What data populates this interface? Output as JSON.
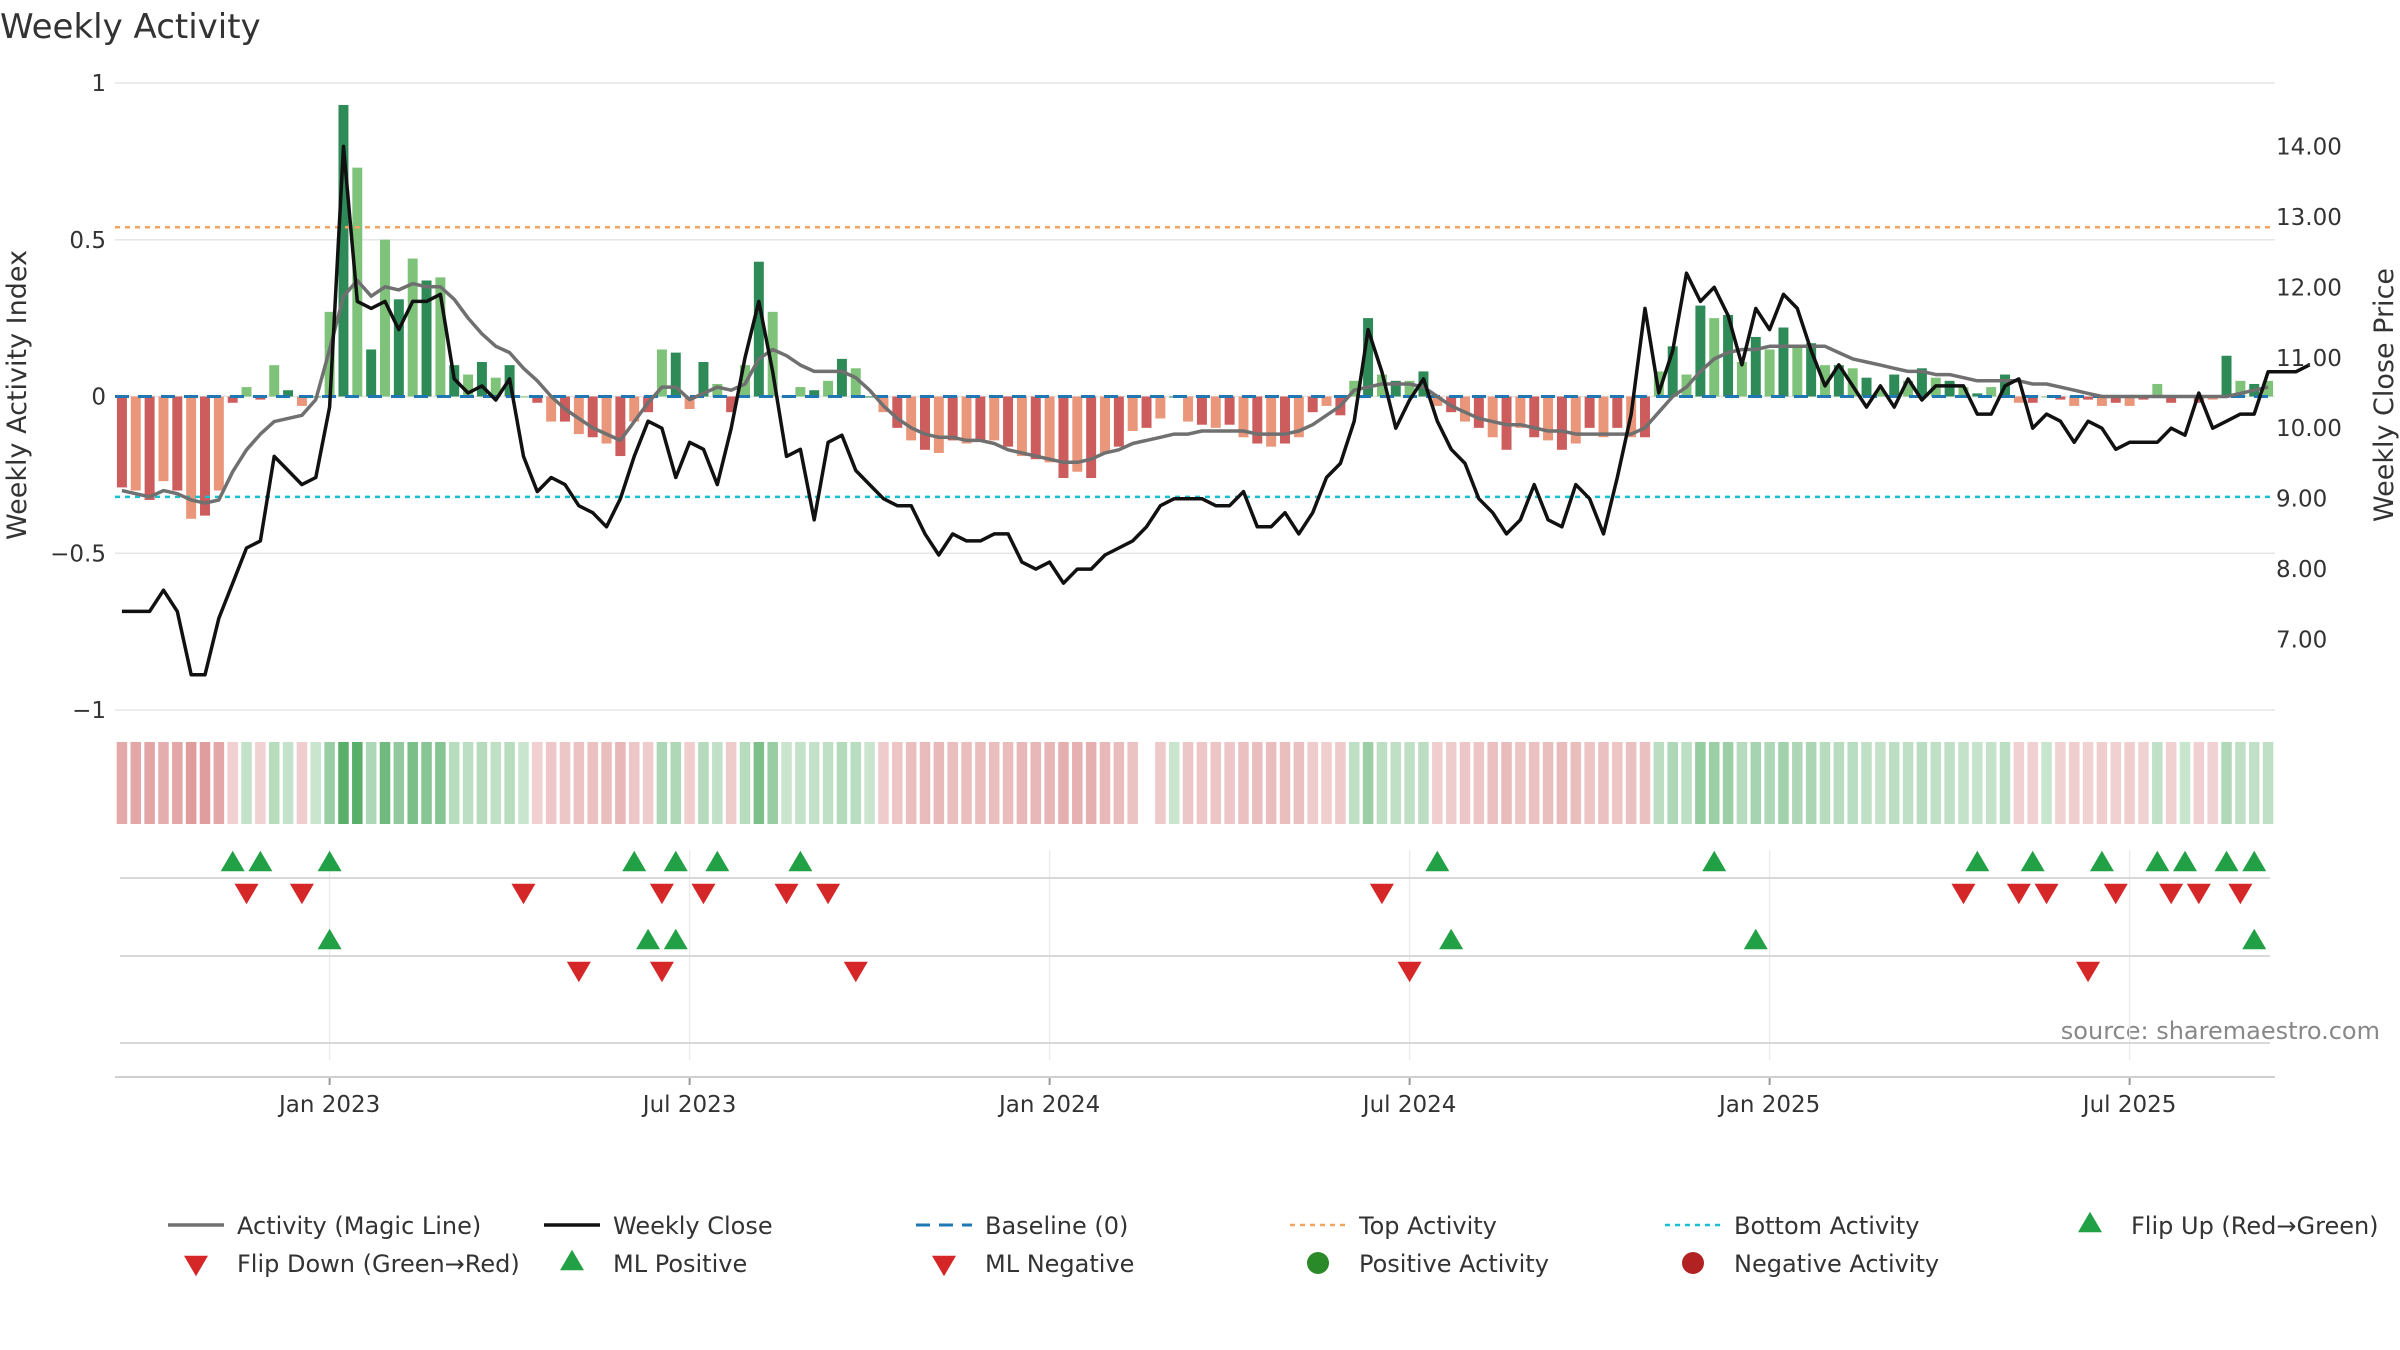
{
  "chart_data": {
    "type": "bar+line",
    "title": "Weekly Activity",
    "ylabel_left": "Weekly Activity Index",
    "ylabel_right": "Weekly Close Price",
    "source": "source: sharemaestro.com",
    "ylim_left": [
      -1,
      1
    ],
    "ylim_right": [
      6.0,
      14.9
    ],
    "left_ticks": [
      {
        "v": 1,
        "label": "1"
      },
      {
        "v": 0.5,
        "label": "0.5"
      },
      {
        "v": 0,
        "label": "0"
      },
      {
        "v": -0.5,
        "label": "−0.5"
      },
      {
        "v": -1,
        "label": "−1"
      }
    ],
    "right_ticks": [
      {
        "v": 14,
        "label": "14.00"
      },
      {
        "v": 13,
        "label": "13.00"
      },
      {
        "v": 12,
        "label": "12.00"
      },
      {
        "v": 11,
        "label": "11.00"
      },
      {
        "v": 10,
        "label": "10.00"
      },
      {
        "v": 9,
        "label": "9.00"
      },
      {
        "v": 8,
        "label": "8.00"
      },
      {
        "v": 7,
        "label": "7.00"
      }
    ],
    "x_ticks": [
      {
        "week": 15,
        "label": "Jan 2023"
      },
      {
        "week": 41,
        "label": "Jul 2023"
      },
      {
        "week": 67,
        "label": "Jan 2024"
      },
      {
        "week": 93,
        "label": "Jul 2024"
      },
      {
        "week": 119,
        "label": "Jan 2025"
      },
      {
        "week": 145,
        "label": "Jul 2025"
      }
    ],
    "top_activity": 0.54,
    "bottom_activity": -0.32,
    "activity": [
      -0.29,
      -0.3,
      -0.33,
      -0.27,
      -0.3,
      -0.39,
      -0.38,
      -0.3,
      -0.02,
      0.03,
      -0.01,
      0.1,
      0.02,
      -0.03,
      0.0,
      0.27,
      0.93,
      0.73,
      0.15,
      0.5,
      0.31,
      0.44,
      0.37,
      0.38,
      0.1,
      0.07,
      0.11,
      0.06,
      0.1,
      0.0,
      -0.02,
      -0.08,
      -0.08,
      -0.12,
      -0.13,
      -0.15,
      -0.19,
      -0.08,
      -0.05,
      0.15,
      0.14,
      -0.04,
      0.11,
      0.04,
      -0.05,
      0.1,
      0.43,
      0.27,
      0.0,
      0.03,
      0.02,
      0.05,
      0.12,
      0.09,
      0.0,
      -0.05,
      -0.1,
      -0.14,
      -0.17,
      -0.18,
      -0.14,
      -0.15,
      -0.14,
      -0.14,
      -0.16,
      -0.19,
      -0.2,
      -0.21,
      -0.26,
      -0.24,
      -0.26,
      -0.18,
      -0.16,
      -0.11,
      -0.1,
      -0.07,
      0.0,
      -0.08,
      -0.09,
      -0.1,
      -0.09,
      -0.13,
      -0.15,
      -0.16,
      -0.15,
      -0.13,
      -0.05,
      -0.03,
      -0.06,
      0.05,
      0.25,
      0.07,
      0.05,
      0.05,
      0.08,
      -0.03,
      -0.05,
      -0.08,
      -0.1,
      -0.13,
      -0.17,
      -0.1,
      -0.13,
      -0.14,
      -0.17,
      -0.15,
      -0.1,
      -0.13,
      -0.1,
      -0.13,
      -0.13,
      0.08,
      0.16,
      0.07,
      0.29,
      0.25,
      0.26,
      0.11,
      0.19,
      0.15,
      0.22,
      0.16,
      0.17,
      0.1,
      0.1,
      0.09,
      0.06,
      0.02,
      0.07,
      0.05,
      0.09,
      0.06,
      0.05,
      0.03,
      0.01,
      0.03,
      0.07,
      -0.02,
      -0.02,
      0.0,
      -0.01,
      -0.03,
      -0.01,
      -0.03,
      -0.02,
      -0.03,
      -0.01,
      0.04,
      -0.02,
      0.0,
      -0.02,
      -0.01,
      0.13,
      0.05,
      0.04,
      0.05
    ],
    "magic_line": [
      -0.3,
      -0.31,
      -0.32,
      -0.3,
      -0.31,
      -0.33,
      -0.34,
      -0.33,
      -0.24,
      -0.17,
      -0.12,
      -0.08,
      -0.07,
      -0.06,
      -0.01,
      0.15,
      0.32,
      0.37,
      0.32,
      0.35,
      0.34,
      0.36,
      0.35,
      0.35,
      0.31,
      0.25,
      0.2,
      0.16,
      0.14,
      0.09,
      0.05,
      0.0,
      -0.04,
      -0.07,
      -0.1,
      -0.12,
      -0.14,
      -0.08,
      -0.02,
      0.03,
      0.03,
      -0.01,
      0.01,
      0.03,
      0.02,
      0.04,
      0.12,
      0.15,
      0.13,
      0.1,
      0.08,
      0.08,
      0.08,
      0.06,
      0.02,
      -0.03,
      -0.07,
      -0.1,
      -0.12,
      -0.13,
      -0.13,
      -0.14,
      -0.14,
      -0.15,
      -0.17,
      -0.18,
      -0.19,
      -0.2,
      -0.21,
      -0.21,
      -0.2,
      -0.18,
      -0.17,
      -0.15,
      -0.14,
      -0.13,
      -0.12,
      -0.12,
      -0.11,
      -0.11,
      -0.11,
      -0.11,
      -0.12,
      -0.12,
      -0.12,
      -0.11,
      -0.09,
      -0.06,
      -0.03,
      0.02,
      0.03,
      0.04,
      0.04,
      0.04,
      0.03,
      0.0,
      -0.03,
      -0.05,
      -0.07,
      -0.08,
      -0.09,
      -0.09,
      -0.1,
      -0.11,
      -0.11,
      -0.12,
      -0.12,
      -0.12,
      -0.12,
      -0.12,
      -0.1,
      -0.05,
      0.0,
      0.03,
      0.08,
      0.12,
      0.14,
      0.15,
      0.15,
      0.16,
      0.16,
      0.16,
      0.16,
      0.16,
      0.14,
      0.12,
      0.11,
      0.1,
      0.09,
      0.08,
      0.08,
      0.07,
      0.07,
      0.06,
      0.05,
      0.05,
      0.05,
      0.05,
      0.04,
      0.04,
      0.03,
      0.02,
      0.01,
      0.0,
      0.0,
      0.0,
      0.0,
      0.0,
      0.0,
      0.0,
      0.0,
      0.0,
      0.0,
      0.01,
      0.02,
      0.03
    ],
    "weekly_close": [
      7.4,
      7.4,
      7.4,
      7.7,
      7.4,
      6.5,
      6.5,
      7.3,
      7.8,
      8.3,
      8.4,
      9.6,
      9.4,
      9.2,
      9.3,
      10.3,
      14.0,
      11.8,
      11.7,
      11.8,
      11.4,
      11.8,
      11.8,
      11.9,
      10.7,
      10.5,
      10.6,
      10.4,
      10.7,
      9.6,
      9.1,
      9.3,
      9.2,
      8.9,
      8.8,
      8.6,
      9.0,
      9.6,
      10.1,
      10.0,
      9.3,
      9.8,
      9.7,
      9.2,
      10.0,
      11.0,
      11.8,
      10.8,
      9.6,
      9.7,
      8.7,
      9.8,
      9.9,
      9.4,
      9.2,
      9.0,
      8.9,
      8.9,
      8.5,
      8.2,
      8.5,
      8.4,
      8.4,
      8.5,
      8.5,
      8.1,
      8.0,
      8.1,
      7.8,
      8.0,
      8.0,
      8.2,
      8.3,
      8.4,
      8.6,
      8.9,
      9.0,
      9.0,
      9.0,
      8.9,
      8.9,
      9.1,
      8.6,
      8.6,
      8.8,
      8.5,
      8.8,
      9.3,
      9.5,
      10.1,
      11.4,
      10.8,
      10.0,
      10.4,
      10.7,
      10.1,
      9.7,
      9.5,
      9.0,
      8.8,
      8.5,
      8.7,
      9.2,
      8.7,
      8.6,
      9.2,
      9.0,
      8.5,
      9.3,
      10.2,
      11.7,
      10.5,
      11.1,
      12.2,
      11.8,
      12.0,
      11.6,
      10.9,
      11.7,
      11.4,
      11.9,
      11.7,
      11.1,
      10.6,
      10.9,
      10.6,
      10.3,
      10.6,
      10.3,
      10.7,
      10.4,
      10.6,
      10.6,
      10.6,
      10.2,
      10.2,
      10.6,
      10.7,
      10.0,
      10.2,
      10.1,
      9.8,
      10.1,
      10.0,
      9.7,
      9.8,
      9.8,
      9.8,
      10.0,
      9.9,
      10.5,
      10.0,
      10.1,
      10.2,
      10.2,
      10.8,
      10.8,
      10.8,
      10.9
    ],
    "band_gaps": [
      74
    ],
    "flip_up": [
      8,
      10,
      15,
      37,
      40,
      43,
      49,
      95,
      115,
      134,
      138,
      143,
      147,
      149,
      152,
      154
    ],
    "flip_down": [
      9,
      13,
      29,
      39,
      42,
      48,
      51,
      91,
      133,
      137,
      139,
      144,
      148,
      150,
      153
    ],
    "ml_positive": [
      15,
      38,
      40,
      96,
      118,
      154
    ],
    "ml_negative": [
      33,
      39,
      53,
      93,
      142
    ],
    "legend": [
      {
        "key": "magic",
        "label": "Activity (Magic Line)"
      },
      {
        "key": "close",
        "label": "Weekly Close"
      },
      {
        "key": "baseline",
        "label": "Baseline (0)"
      },
      {
        "key": "top",
        "label": "Top Activity"
      },
      {
        "key": "bottom",
        "label": "Bottom Activity"
      },
      {
        "key": "flipup",
        "label": "Flip Up (Red→Green)"
      },
      {
        "key": "flipdown",
        "label": "Flip Down (Green→Red)"
      },
      {
        "key": "mlpos",
        "label": "ML Positive"
      },
      {
        "key": "mlneg",
        "label": "ML Negative"
      },
      {
        "key": "posact",
        "label": "Positive Activity"
      },
      {
        "key": "negact",
        "label": "Negative Activity"
      }
    ],
    "colors": {
      "positive_strong": "#2e8b57",
      "positive_light": "#7fc37a",
      "negative_strong": "#cd5c5c",
      "negative_light": "#e9967a",
      "magic_line": "#707070",
      "close_line": "#111111",
      "baseline": "#1f77b4",
      "top_activity": "#f4a460",
      "bottom_activity": "#17bfcf",
      "flip_up": "#22a045",
      "flip_down": "#d62728",
      "positive_dot": "#2a8a2a",
      "negative_dot": "#b22222"
    }
  }
}
